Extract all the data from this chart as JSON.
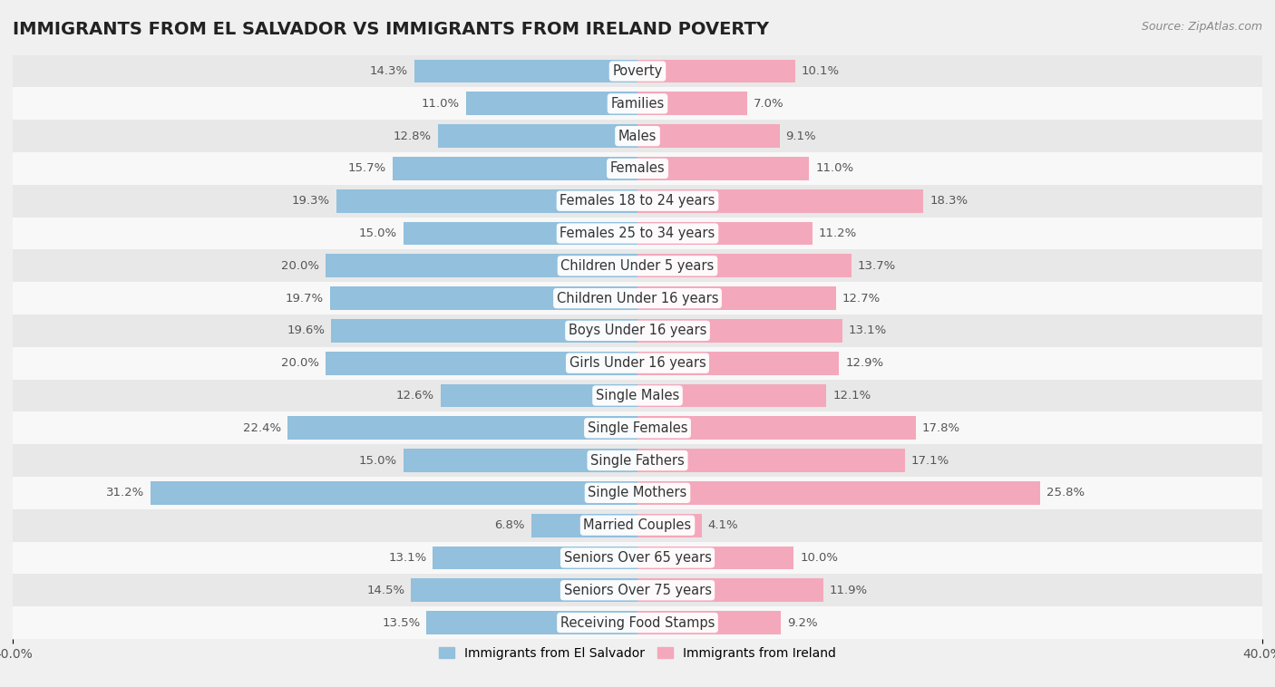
{
  "title": "IMMIGRANTS FROM EL SALVADOR VS IMMIGRANTS FROM IRELAND POVERTY",
  "source": "Source: ZipAtlas.com",
  "categories": [
    "Poverty",
    "Families",
    "Males",
    "Females",
    "Females 18 to 24 years",
    "Females 25 to 34 years",
    "Children Under 5 years",
    "Children Under 16 years",
    "Boys Under 16 years",
    "Girls Under 16 years",
    "Single Males",
    "Single Females",
    "Single Fathers",
    "Single Mothers",
    "Married Couples",
    "Seniors Over 65 years",
    "Seniors Over 75 years",
    "Receiving Food Stamps"
  ],
  "el_salvador": [
    14.3,
    11.0,
    12.8,
    15.7,
    19.3,
    15.0,
    20.0,
    19.7,
    19.6,
    20.0,
    12.6,
    22.4,
    15.0,
    31.2,
    6.8,
    13.1,
    14.5,
    13.5
  ],
  "ireland": [
    10.1,
    7.0,
    9.1,
    11.0,
    18.3,
    11.2,
    13.7,
    12.7,
    13.1,
    12.9,
    12.1,
    17.8,
    17.1,
    25.8,
    4.1,
    10.0,
    11.9,
    9.2
  ],
  "el_salvador_color": "#92c0dd",
  "ireland_color": "#f4a8bc",
  "background_color": "#f0f0f0",
  "row_even_color": "#e8e8e8",
  "row_odd_color": "#f8f8f8",
  "axis_limit": 40.0,
  "bar_height": 0.72,
  "label_fontsize": 10.5,
  "value_fontsize": 9.5,
  "title_fontsize": 14,
  "legend_label_el_salvador": "Immigrants from El Salvador",
  "legend_label_ireland": "Immigrants from Ireland",
  "legend_color_el_salvador": "#92c0dd",
  "legend_color_ireland": "#f4a8bc"
}
